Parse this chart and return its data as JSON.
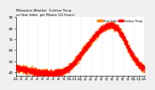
{
  "bg_color": "#f0f0f0",
  "plot_bg_color": "#ffffff",
  "series_temp": {
    "color": "#ff0000",
    "marker": ".",
    "markersize": 0.8,
    "linestyle": "None",
    "label": "Outdoor Temp"
  },
  "series_heat": {
    "color": "#ff8800",
    "marker": ".",
    "markersize": 0.8,
    "linestyle": "None",
    "label": "Heat Index"
  },
  "legend_colors": [
    "#ff8800",
    "#ff0000"
  ],
  "legend_labels": [
    "Heat Index",
    "Outdoor Temp"
  ],
  "ylim": [
    37,
    90
  ],
  "yticks": [
    40,
    50,
    60,
    70,
    80,
    90
  ],
  "ytick_labels": [
    "40",
    "50",
    "60",
    "70",
    "80",
    "90"
  ],
  "xlim": [
    0,
    1440
  ],
  "num_points": 1440,
  "title": "Milwaukee Weather  Outdoor Temp  vs Heat Index  per Minute  (24 Hours)",
  "grid_color": "#aaaaaa",
  "grid_alpha": 0.5,
  "noise_std_temp": 1.2,
  "noise_std_heat": 1.5,
  "temp_knots_x": [
    0,
    60,
    120,
    180,
    240,
    300,
    360,
    420,
    480,
    540,
    600,
    660,
    720,
    780,
    840,
    900,
    960,
    1020,
    1080,
    1140,
    1200,
    1260,
    1320,
    1380,
    1440
  ],
  "temp_knots_y": [
    44,
    43,
    42,
    41,
    40,
    40,
    39,
    39,
    40,
    41,
    44,
    49,
    55,
    62,
    68,
    74,
    79,
    82,
    83,
    80,
    73,
    62,
    54,
    47,
    43
  ],
  "heat_knots_x": [
    0,
    60,
    120,
    180,
    240,
    300,
    360,
    420,
    480,
    540,
    600,
    660,
    720,
    780,
    840,
    900,
    960,
    1020,
    1080,
    1140,
    1200,
    1260,
    1320,
    1380,
    1440
  ],
  "heat_knots_y": [
    44,
    43,
    42,
    41,
    40,
    40,
    39,
    39,
    40,
    41,
    44,
    49,
    55,
    62,
    68,
    74,
    79,
    82,
    83,
    80,
    73,
    62,
    54,
    47,
    43
  ]
}
